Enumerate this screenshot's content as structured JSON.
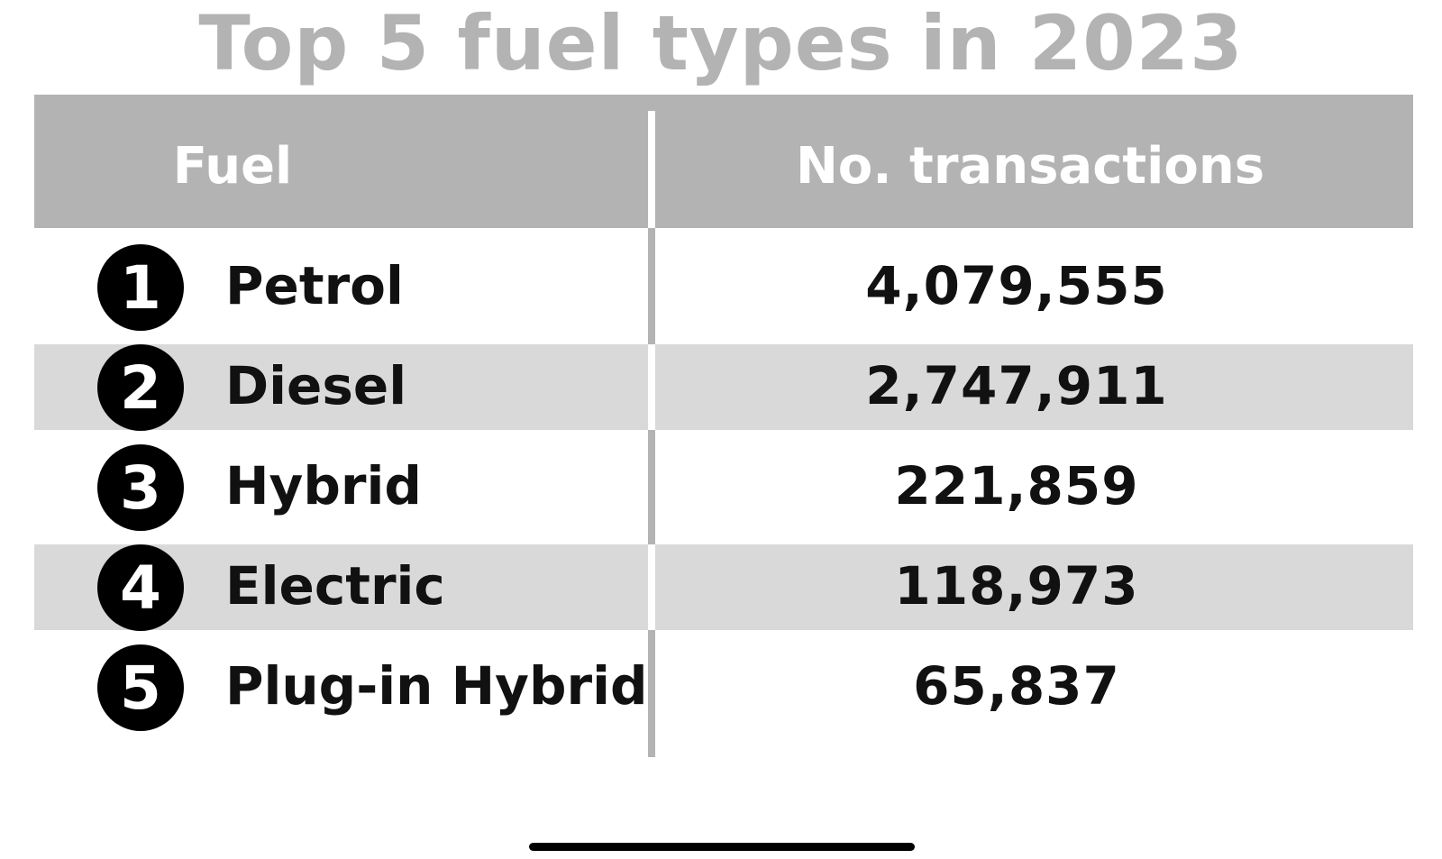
{
  "title": "Top 5 fuel types in 2023",
  "columns": {
    "fuel": "Fuel",
    "transactions": "No. transactions"
  },
  "colors": {
    "header_bg": "#b3b3b3",
    "title": "#b3b3b3",
    "row_shade": "#d9d9d9",
    "badge": "#000000"
  },
  "chart_data": {
    "type": "table",
    "title": "Top 5 fuel types in 2023",
    "columns": [
      "Fuel",
      "No. transactions"
    ],
    "rows": [
      {
        "rank": "1",
        "fuel": "Petrol",
        "transactions": "4,079,555",
        "value": 4079555
      },
      {
        "rank": "2",
        "fuel": "Diesel",
        "transactions": "2,747,911",
        "value": 2747911
      },
      {
        "rank": "3",
        "fuel": "Hybrid",
        "transactions": "221,859",
        "value": 221859
      },
      {
        "rank": "4",
        "fuel": "Electric",
        "transactions": "118,973",
        "value": 118973
      },
      {
        "rank": "5",
        "fuel": "Plug-in Hybrid",
        "transactions": "65,837",
        "value": 65837
      }
    ]
  }
}
